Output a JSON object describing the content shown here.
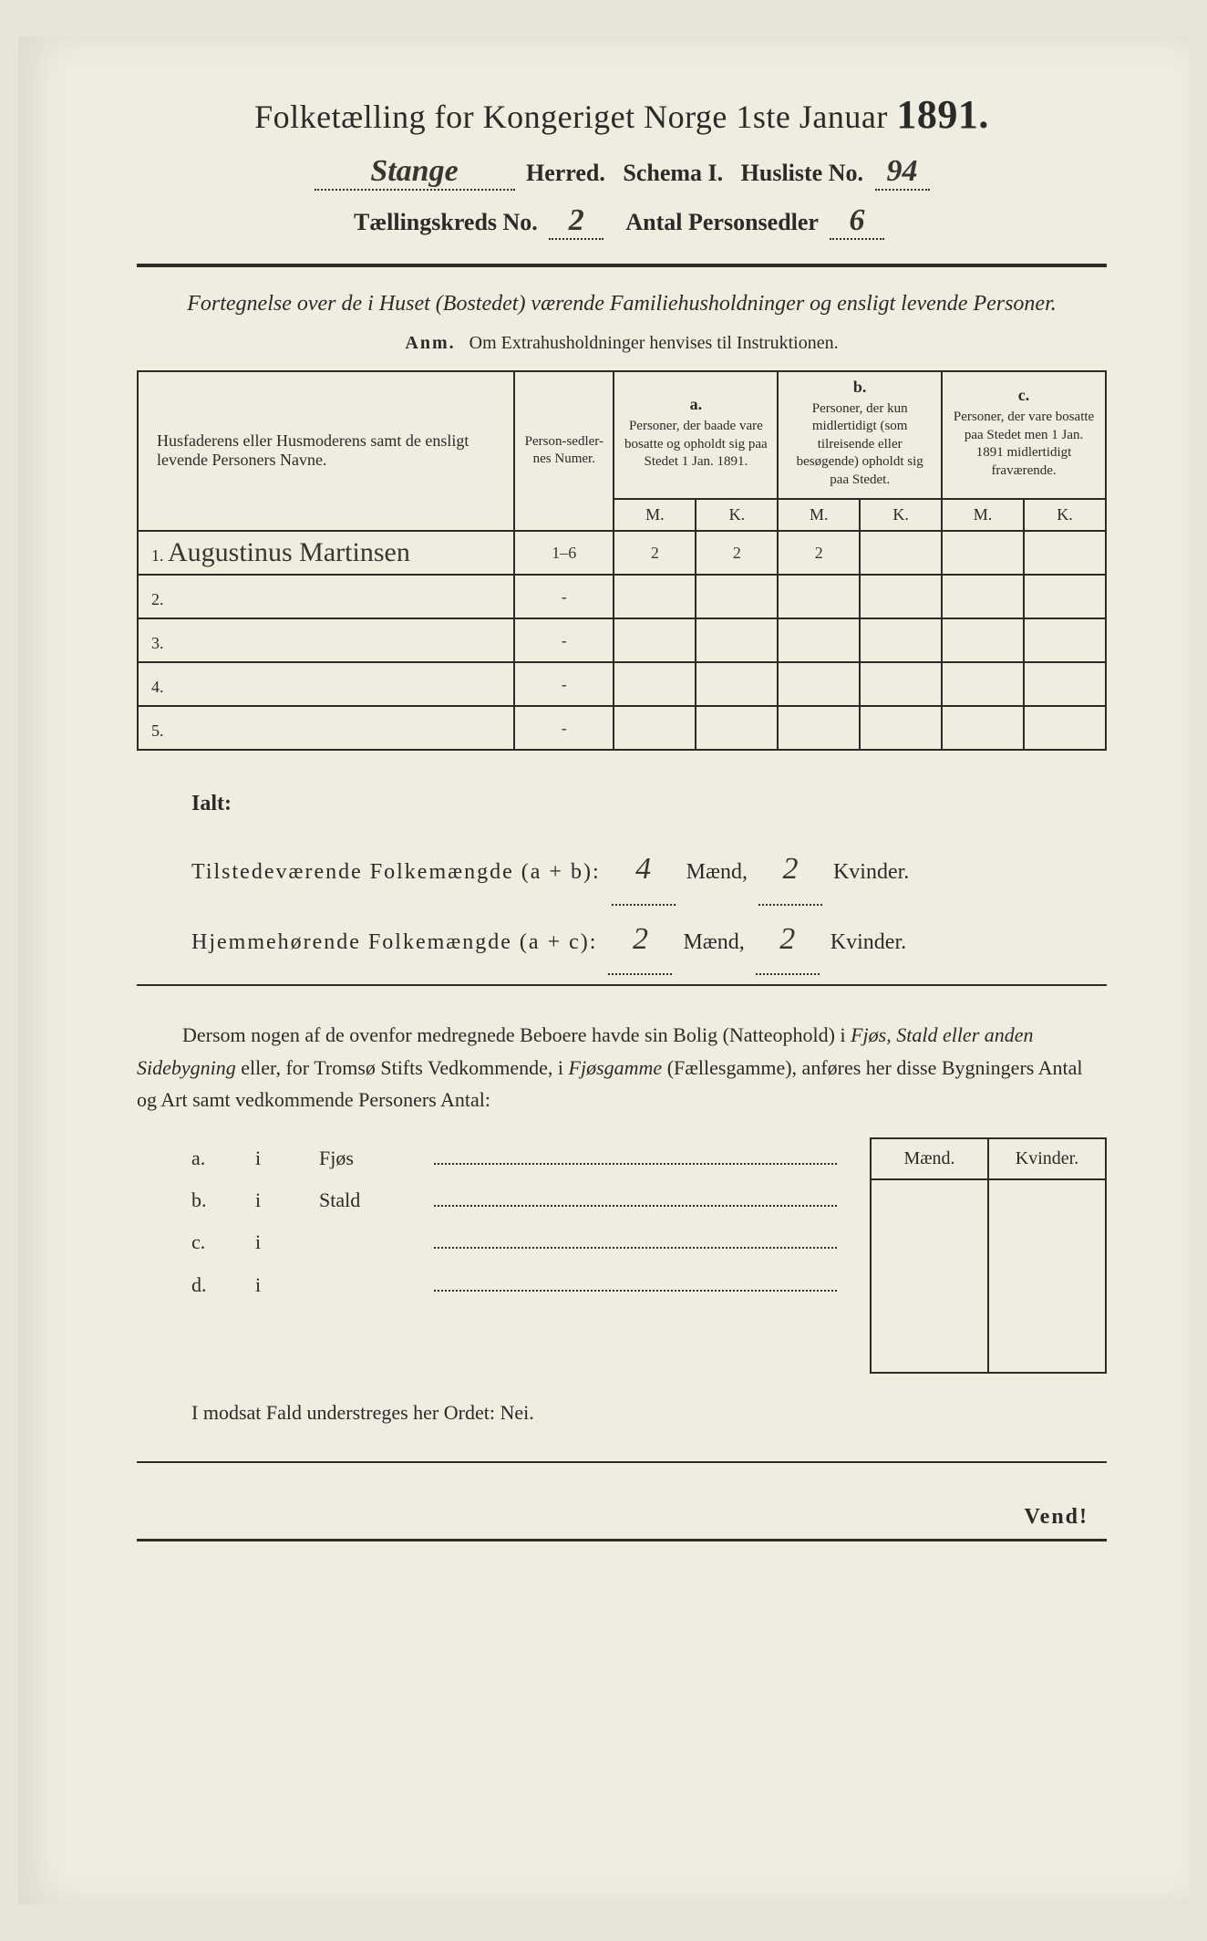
{
  "header": {
    "title_prefix": "Folketælling for Kongeriget Norge 1ste Januar",
    "year": "1891.",
    "herred_value": "Stange",
    "herred_label": "Herred.",
    "schema_label": "Schema I.",
    "husliste_label": "Husliste No.",
    "husliste_value": "94",
    "kreds_label": "Tællingskreds No.",
    "kreds_value": "2",
    "antal_label": "Antal Personsedler",
    "antal_value": "6"
  },
  "subtitle": "Fortegnelse over de i Huset (Bostedet) værende Familiehusholdninger og ensligt levende Personer.",
  "anm_label": "Anm.",
  "anm_text": "Om Extrahusholdninger henvises til Instruktionen.",
  "columns": {
    "name_header": "Husfaderens eller Husmoderens samt de ensligt levende Personers Navne.",
    "numer_header": "Person-sedler-nes Numer.",
    "a_letter": "a.",
    "a_text": "Personer, der baade vare bosatte og opholdt sig paa Stedet 1 Jan. 1891.",
    "b_letter": "b.",
    "b_text": "Personer, der kun midlertidigt (som tilreisende eller besøgende) opholdt sig paa Stedet.",
    "c_letter": "c.",
    "c_text": "Personer, der vare bosatte paa Stedet men 1 Jan. 1891 midlertidigt fraværende.",
    "m": "M.",
    "k": "K."
  },
  "rows": [
    {
      "n": "1.",
      "name": "Augustinus Martinsen",
      "numer": "1–6",
      "am": "2",
      "ak": "2",
      "bm": "2",
      "bk": "",
      "cm": "",
      "ck": ""
    },
    {
      "n": "2.",
      "name": "",
      "numer": "-",
      "am": "",
      "ak": "",
      "bm": "",
      "bk": "",
      "cm": "",
      "ck": ""
    },
    {
      "n": "3.",
      "name": "",
      "numer": "-",
      "am": "",
      "ak": "",
      "bm": "",
      "bk": "",
      "cm": "",
      "ck": ""
    },
    {
      "n": "4.",
      "name": "",
      "numer": "-",
      "am": "",
      "ak": "",
      "bm": "",
      "bk": "",
      "cm": "",
      "ck": ""
    },
    {
      "n": "5.",
      "name": "",
      "numer": "-",
      "am": "",
      "ak": "",
      "bm": "",
      "bk": "",
      "cm": "",
      "ck": ""
    }
  ],
  "totals": {
    "ialt": "Ialt:",
    "tilstede_label": "Tilstedeværende Folkemængde (a + b):",
    "tilstede_m": "4",
    "tilstede_k": "2",
    "hjemme_label": "Hjemmehørende Folkemængde (a + c):",
    "hjemme_m": "2",
    "hjemme_k": "2",
    "maend": "Mænd,",
    "kvinder": "Kvinder."
  },
  "para": {
    "p1": "Dersom nogen af de ovenfor medregnede Beboere havde sin Bolig (Natteophold) i ",
    "it1": "Fjøs, Stald eller anden Sidebygning",
    "p2": " eller, for Tromsø Stifts Vedkommende, i ",
    "it2": "Fjøsgamme",
    "p3": " (Fællesgamme), anføres her disse Bygningers Antal og Art samt vedkommende Personers Antal:"
  },
  "mkbox": {
    "maend": "Mænd.",
    "kvinder": "Kvinder."
  },
  "buildings": [
    {
      "a": "a.",
      "i": "i",
      "name": "Fjøs"
    },
    {
      "a": "b.",
      "i": "i",
      "name": "Stald"
    },
    {
      "a": "c.",
      "i": "i",
      "name": ""
    },
    {
      "a": "d.",
      "i": "i",
      "name": ""
    }
  ],
  "nei": "I modsat Fald understreges her Ordet: Nei.",
  "vend": "Vend!"
}
